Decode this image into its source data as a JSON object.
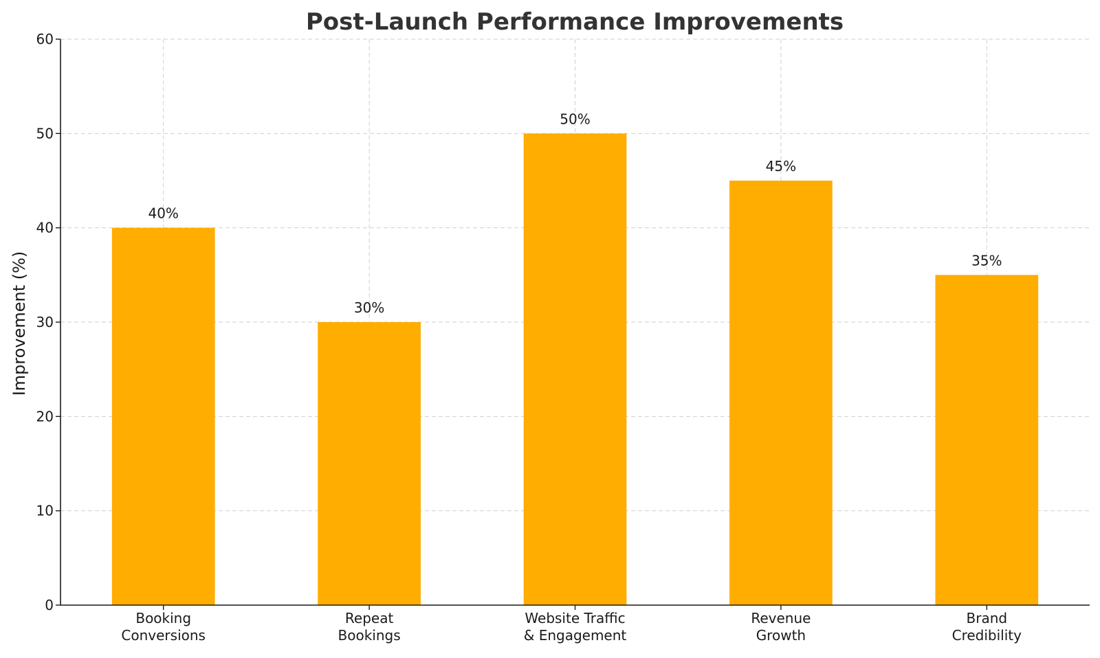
{
  "chart_data": {
    "type": "bar",
    "title": "Post-Launch Performance Improvements",
    "xlabel": "",
    "ylabel": "Improvement (%)",
    "categories": [
      [
        "Booking",
        "Conversions"
      ],
      [
        "Repeat",
        "Bookings"
      ],
      [
        "Website Traffic",
        "& Engagement"
      ],
      [
        "Revenue",
        "Growth"
      ],
      [
        "Brand",
        "Credibility"
      ]
    ],
    "values": [
      40,
      30,
      50,
      45,
      35
    ],
    "data_labels": [
      "40%",
      "30%",
      "50%",
      "45%",
      "35%"
    ],
    "ylim": [
      0,
      60
    ],
    "yticks": [
      0,
      10,
      20,
      30,
      40,
      50,
      60
    ],
    "grid": true,
    "bar_color": "#FFAD00"
  }
}
